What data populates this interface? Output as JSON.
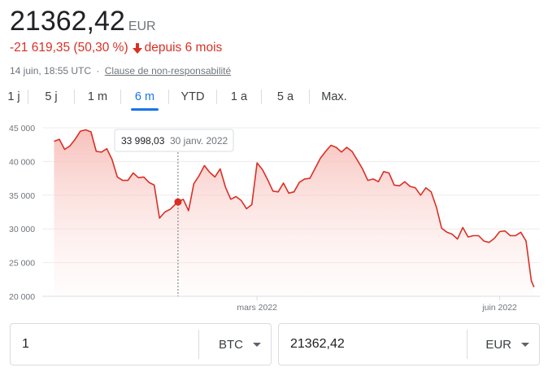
{
  "header": {
    "price": "21362,42",
    "currency": "EUR",
    "change": "-21 619,35 (50,30 %)",
    "period": "depuis 6 mois",
    "timestamp": "14 juin, 18:55 UTC",
    "separator": "·",
    "disclaimer": "Clause de non-responsabilité"
  },
  "tabs": [
    {
      "label": "1 j",
      "active": false
    },
    {
      "label": "5 j",
      "active": false
    },
    {
      "label": "1 m",
      "active": false
    },
    {
      "label": "6 m",
      "active": true
    },
    {
      "label": "YTD",
      "active": false
    },
    {
      "label": "1 a",
      "active": false
    },
    {
      "label": "5 a",
      "active": false
    },
    {
      "label": "Max.",
      "active": false
    }
  ],
  "tooltip": {
    "value": "33 998,03",
    "date": "30 janv. 2022"
  },
  "chart_data": {
    "type": "area",
    "y_ticks": [
      "45 000",
      "40 000",
      "35 000",
      "30 000",
      "25 000",
      "20 000"
    ],
    "ylim": [
      20000,
      45000
    ],
    "x_ticks": [
      "mars 2022",
      "juin 2022"
    ],
    "grid": true,
    "line_color": "#d93025",
    "series": [
      {
        "x": [
          "2021-12-14",
          "2021-12-16",
          "2021-12-18",
          "2021-12-20",
          "2021-12-22",
          "2021-12-24",
          "2021-12-26",
          "2021-12-28",
          "2021-12-30",
          "2022-01-01",
          "2022-01-03",
          "2022-01-05",
          "2022-01-07",
          "2022-01-09",
          "2022-01-11",
          "2022-01-13",
          "2022-01-15",
          "2022-01-17",
          "2022-01-19",
          "2022-01-21",
          "2022-01-23",
          "2022-01-25",
          "2022-01-27",
          "2022-01-30",
          "2022-02-01",
          "2022-02-03",
          "2022-02-05",
          "2022-02-07",
          "2022-02-09",
          "2022-02-11",
          "2022-02-13",
          "2022-02-15",
          "2022-02-17",
          "2022-02-19",
          "2022-02-21",
          "2022-02-23",
          "2022-02-25",
          "2022-02-27",
          "2022-03-01",
          "2022-03-03",
          "2022-03-05",
          "2022-03-07",
          "2022-03-09",
          "2022-03-11",
          "2022-03-13",
          "2022-03-15",
          "2022-03-17",
          "2022-03-19",
          "2022-03-21",
          "2022-03-23",
          "2022-03-25",
          "2022-03-27",
          "2022-03-29",
          "2022-03-31",
          "2022-04-02",
          "2022-04-04",
          "2022-04-06",
          "2022-04-08",
          "2022-04-10",
          "2022-04-12",
          "2022-04-14",
          "2022-04-16",
          "2022-04-18",
          "2022-04-20",
          "2022-04-22",
          "2022-04-24",
          "2022-04-26",
          "2022-04-28",
          "2022-04-30",
          "2022-05-02",
          "2022-05-04",
          "2022-05-06",
          "2022-05-08",
          "2022-05-10",
          "2022-05-12",
          "2022-05-14",
          "2022-05-16",
          "2022-05-18",
          "2022-05-20",
          "2022-05-22",
          "2022-05-24",
          "2022-05-26",
          "2022-05-28",
          "2022-05-30",
          "2022-06-01",
          "2022-06-03",
          "2022-06-05",
          "2022-06-07",
          "2022-06-09",
          "2022-06-11",
          "2022-06-13",
          "2022-06-14"
        ],
        "values": [
          43000,
          43300,
          41800,
          42300,
          43300,
          44500,
          44700,
          44400,
          41500,
          41400,
          41900,
          40300,
          37700,
          37200,
          37200,
          38300,
          37600,
          37700,
          36900,
          36500,
          31600,
          32500,
          32900,
          33998,
          34400,
          32700,
          36700,
          37900,
          39400,
          38400,
          37700,
          38900,
          36200,
          34400,
          34800,
          34200,
          33000,
          33600,
          39800,
          38800,
          37300,
          35600,
          35500,
          36800,
          35300,
          35500,
          36900,
          37400,
          37500,
          39000,
          40500,
          41500,
          42400,
          42100,
          41400,
          42100,
          41500,
          40200,
          38900,
          37200,
          37400,
          37000,
          38500,
          38300,
          36500,
          36400,
          37000,
          36300,
          36100,
          35000,
          36100,
          35500,
          33200,
          30100,
          29500,
          29200,
          28500,
          30200,
          28800,
          29000,
          29000,
          28200,
          28000,
          28600,
          29600,
          29700,
          29000,
          29000,
          29500,
          28200,
          22300,
          21362
        ]
      }
    ],
    "highlight": {
      "x": "2022-01-30",
      "y": 33998
    }
  },
  "converter": {
    "left_value": "1",
    "left_currency": "BTC",
    "right_value": "21362,42",
    "right_currency": "EUR"
  }
}
